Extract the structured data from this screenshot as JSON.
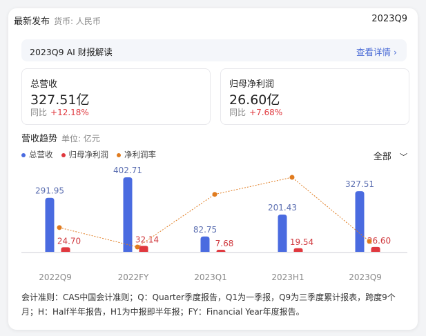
{
  "header": {
    "title": "最新发布",
    "currency": "货币: 人民币",
    "period": "2023Q9"
  },
  "ai_banner": {
    "label": "2023Q9 AI 财报解读",
    "link": "查看详情"
  },
  "kpis": [
    {
      "label": "总营收",
      "value": "327.51亿",
      "yoy_label": "同比",
      "yoy": "+12.18%"
    },
    {
      "label": "归母净利润",
      "value": "26.60亿",
      "yoy_label": "同比",
      "yoy": "+7.68%"
    }
  ],
  "section": {
    "title": "营收趋势",
    "unit": "单位: 亿元",
    "filter": "全部"
  },
  "colors": {
    "revenue": "#4a6be0",
    "profit": "#e0383e",
    "margin": "#e07b1f"
  },
  "chart_data": {
    "type": "bar",
    "categories": [
      "2022Q9",
      "2022FY",
      "2023Q1",
      "2023H1",
      "2023Q9"
    ],
    "series": [
      {
        "name": "总营收",
        "type": "bar",
        "values": [
          291.95,
          402.71,
          82.75,
          201.43,
          327.51
        ],
        "labels": [
          "291.95",
          "402.71",
          "82.75",
          "201.43",
          "327.51"
        ]
      },
      {
        "name": "归母净利润",
        "type": "bar",
        "values": [
          24.7,
          32.14,
          7.68,
          19.54,
          26.6
        ],
        "labels": [
          "24.70",
          "32.14",
          "7.68",
          "19.54",
          "26.60"
        ]
      },
      {
        "name": "净利润率",
        "type": "line",
        "values": [
          8.46,
          7.98,
          9.28,
          9.7,
          8.12
        ]
      }
    ],
    "grid": false,
    "legend": "top-left"
  },
  "note": "会计准则：CAS中国会计准则；Q：Quarter季度报告，Q1为一季报，Q9为三季度累计报表，跨度9个月；H：Half半年报告，H1为中报即半年报；FY：Financial Year年度报告。"
}
